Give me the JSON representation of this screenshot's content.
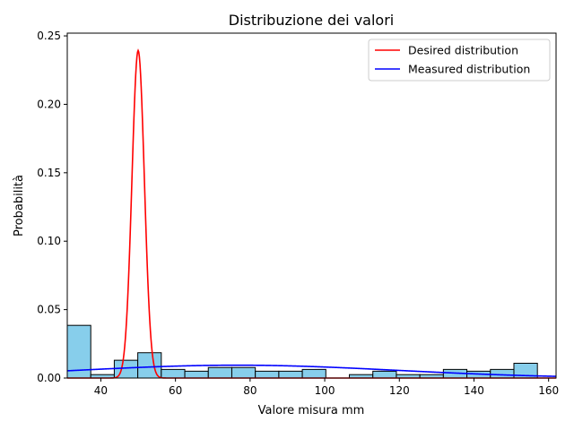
{
  "chart_data": {
    "type": "bar",
    "title": "Distribuzione dei valori",
    "xlabel": "Valore misura mm",
    "ylabel": "Probabilità",
    "xlim": [
      31,
      162
    ],
    "ylim": [
      0,
      0.252
    ],
    "x_ticks": [
      40,
      60,
      80,
      100,
      120,
      140,
      160
    ],
    "x_tick_labels": [
      "40",
      "60",
      "80",
      "100",
      "120",
      "140",
      "160"
    ],
    "y_ticks": [
      0,
      0.05,
      0.1,
      0.15,
      0.2,
      0.25
    ],
    "y_tick_labels": [
      "0.00",
      "0.05",
      "0.10",
      "0.15",
      "0.20",
      "0.25"
    ],
    "grid": false,
    "legend_position": "top-right",
    "histogram": {
      "bin_start": 31.0,
      "bin_width": 6.3,
      "bar_color": "#87ceeb",
      "edge_color": "#000000",
      "values": [
        0.0385,
        0.0025,
        0.013,
        0.0185,
        0.0063,
        0.005,
        0.0077,
        0.0077,
        0.005,
        0.005,
        0.0063,
        0.0,
        0.0025,
        0.005,
        0.0025,
        0.0025,
        0.0063,
        0.005,
        0.0063,
        0.0108
      ]
    },
    "series": [
      {
        "name": "Desired distribution",
        "color": "#ff0000",
        "curve": "normal",
        "mean": 50,
        "std": 1.667
      },
      {
        "name": "Measured distribution",
        "color": "#0000ff",
        "curve": "normal",
        "mean": 76.5,
        "std": 42.5
      }
    ]
  }
}
